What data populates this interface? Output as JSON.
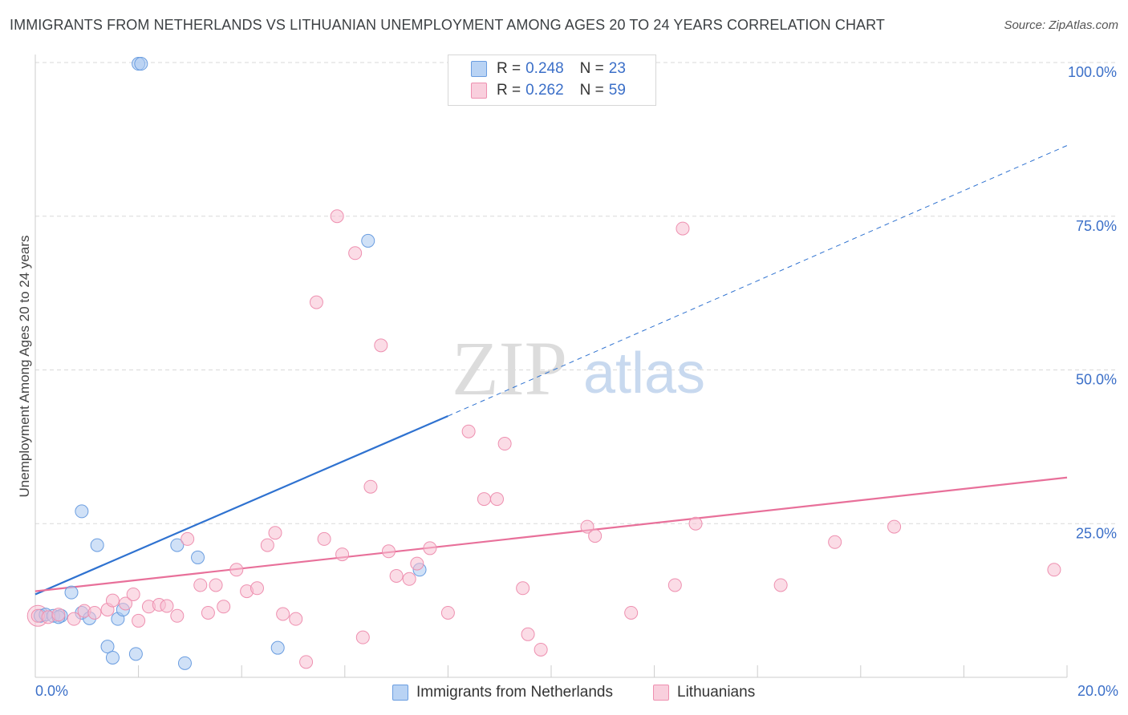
{
  "title": "IMMIGRANTS FROM NETHERLANDS VS LITHUANIAN UNEMPLOYMENT AMONG AGES 20 TO 24 YEARS CORRELATION CHART",
  "source": "Source: ZipAtlas.com",
  "watermark": {
    "zip": "ZIP",
    "atlas": "atlas"
  },
  "colors": {
    "blue_fill": "#a9c8f0",
    "blue_stroke": "#6a9de0",
    "blue_line": "#2f72d0",
    "pink_fill": "#f7c0d2",
    "pink_stroke": "#ee90b0",
    "pink_line": "#e8709a",
    "grid": "#d9d9d9",
    "tick_label": "#3b6fc8"
  },
  "legend": {
    "blue": {
      "r_label": "R = ",
      "r_value": "0.248",
      "n_label": "N = ",
      "n_value": "23"
    },
    "pink": {
      "r_label": "R = ",
      "r_value": "0.262",
      "n_label": "N = ",
      "n_value": "59"
    }
  },
  "bottom_legend": {
    "blue": "Immigrants from Netherlands",
    "pink": "Lithuanians"
  },
  "chart_data": {
    "type": "scatter",
    "title": "IMMIGRANTS FROM NETHERLANDS VS LITHUANIAN UNEMPLOYMENT AMONG AGES 20 TO 24 YEARS CORRELATION CHART",
    "xlabel": "",
    "ylabel": "Unemployment Among Ages 20 to 24 years",
    "xlim": [
      0,
      20
    ],
    "ylim": [
      0,
      100
    ],
    "x_tick_labels": [
      "0.0%",
      "20.0%"
    ],
    "y_ticks": [
      25,
      50,
      75,
      100
    ],
    "y_tick_labels": [
      "25.0%",
      "50.0%",
      "75.0%",
      "100.0%"
    ],
    "grid": true,
    "series": [
      {
        "name": "Immigrants from Netherlands",
        "color": "blue",
        "points": [
          [
            0.1,
            10.0
          ],
          [
            0.2,
            10.2
          ],
          [
            0.35,
            10.0
          ],
          [
            0.5,
            10.0
          ],
          [
            0.7,
            13.8
          ],
          [
            0.9,
            10.5
          ],
          [
            1.05,
            9.6
          ],
          [
            0.9,
            27.0
          ],
          [
            1.2,
            21.5
          ],
          [
            1.4,
            5.0
          ],
          [
            1.5,
            3.2
          ],
          [
            1.6,
            9.5
          ],
          [
            1.7,
            11.0
          ],
          [
            1.95,
            3.8
          ],
          [
            2.0,
            99.8
          ],
          [
            2.05,
            99.8
          ],
          [
            2.75,
            21.5
          ],
          [
            2.9,
            2.3
          ],
          [
            3.15,
            19.5
          ],
          [
            4.7,
            4.8
          ],
          [
            6.45,
            71.0
          ],
          [
            7.45,
            17.5
          ],
          [
            0.45,
            9.8
          ]
        ],
        "trend": {
          "x0": 0,
          "y0": 13.5,
          "x1": 8.0,
          "y1": 42.5,
          "dashed_to_x": 20,
          "dashed_to_y": 86.5
        }
      },
      {
        "name": "Lithuanians",
        "color": "pink",
        "points": [
          [
            0.05,
            10.0
          ],
          [
            0.25,
            9.8
          ],
          [
            0.45,
            10.2
          ],
          [
            0.75,
            9.5
          ],
          [
            0.95,
            10.8
          ],
          [
            1.15,
            10.5
          ],
          [
            1.4,
            11.0
          ],
          [
            1.5,
            12.5
          ],
          [
            1.75,
            12.0
          ],
          [
            1.9,
            13.5
          ],
          [
            2.0,
            9.2
          ],
          [
            2.2,
            11.5
          ],
          [
            2.4,
            11.8
          ],
          [
            2.55,
            11.6
          ],
          [
            2.75,
            10.0
          ],
          [
            2.95,
            22.5
          ],
          [
            3.2,
            15.0
          ],
          [
            3.35,
            10.5
          ],
          [
            3.5,
            15.0
          ],
          [
            3.65,
            11.5
          ],
          [
            3.9,
            17.5
          ],
          [
            4.1,
            14.0
          ],
          [
            4.3,
            14.5
          ],
          [
            4.5,
            21.5
          ],
          [
            4.65,
            23.5
          ],
          [
            4.8,
            10.3
          ],
          [
            5.05,
            9.5
          ],
          [
            5.25,
            2.5
          ],
          [
            5.45,
            61.0
          ],
          [
            5.6,
            22.5
          ],
          [
            5.85,
            75.0
          ],
          [
            5.95,
            20.0
          ],
          [
            6.2,
            69.0
          ],
          [
            6.35,
            6.5
          ],
          [
            6.5,
            31.0
          ],
          [
            6.7,
            54.0
          ],
          [
            6.85,
            20.5
          ],
          [
            7.0,
            16.5
          ],
          [
            7.25,
            16.0
          ],
          [
            7.4,
            18.5
          ],
          [
            7.65,
            21.0
          ],
          [
            8.0,
            10.5
          ],
          [
            8.4,
            40.0
          ],
          [
            8.7,
            29.0
          ],
          [
            8.95,
            29.0
          ],
          [
            9.1,
            38.0
          ],
          [
            9.45,
            14.5
          ],
          [
            9.55,
            7.0
          ],
          [
            9.8,
            4.5
          ],
          [
            10.7,
            24.5
          ],
          [
            10.85,
            23.0
          ],
          [
            11.55,
            10.5
          ],
          [
            12.4,
            15.0
          ],
          [
            12.55,
            73.0
          ],
          [
            12.8,
            25.0
          ],
          [
            14.45,
            15.0
          ],
          [
            15.5,
            22.0
          ],
          [
            16.65,
            24.5
          ],
          [
            19.75,
            17.5
          ]
        ],
        "trend": {
          "x0": 0,
          "y0": 14.0,
          "x1": 20,
          "y1": 32.5
        }
      }
    ]
  }
}
